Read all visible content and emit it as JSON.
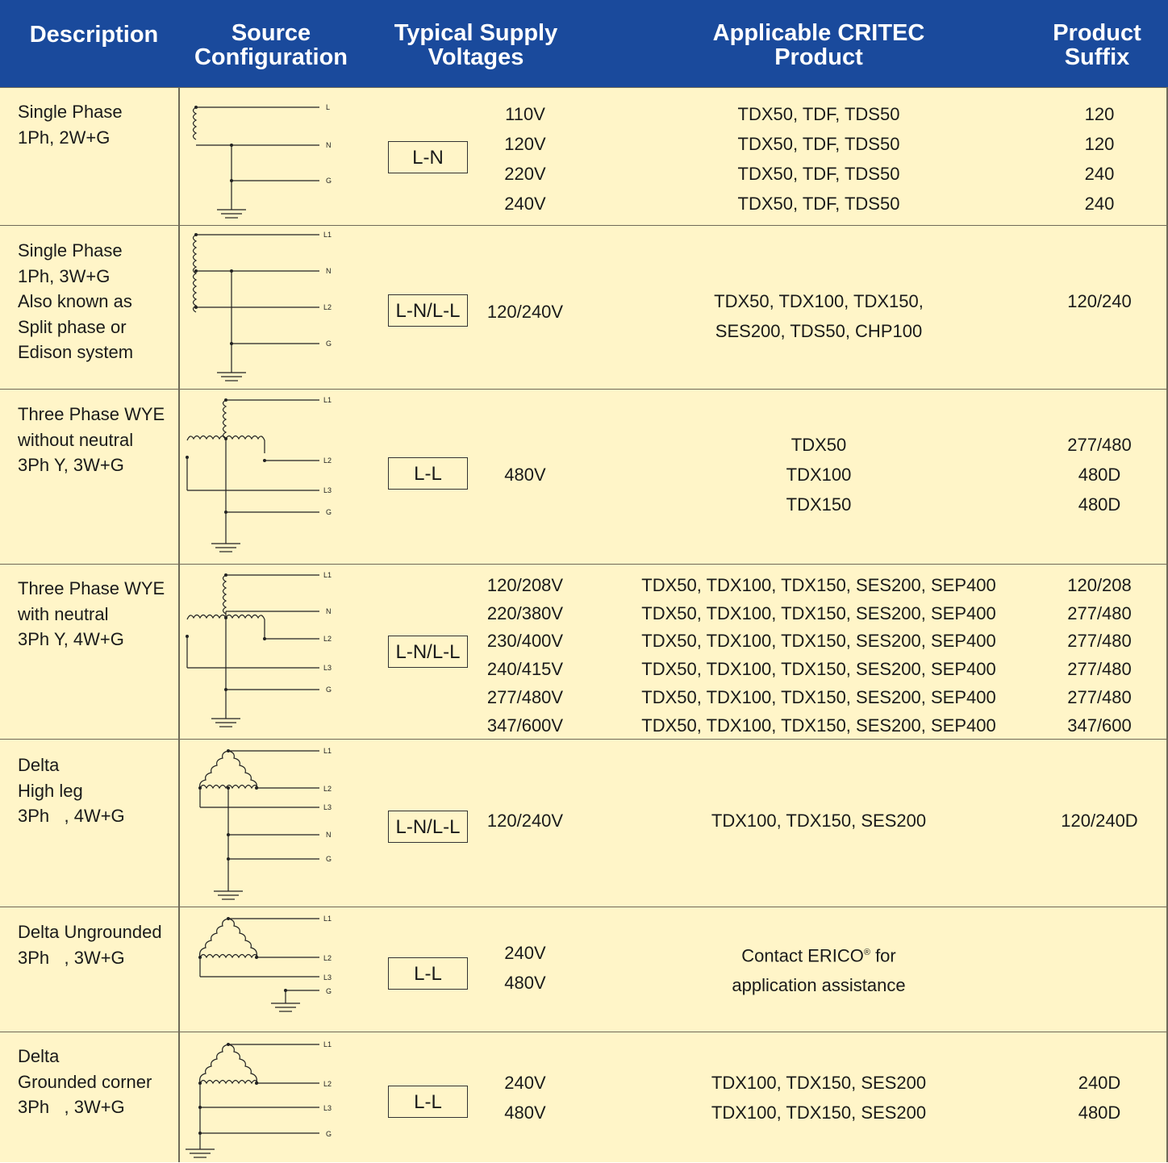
{
  "header": {
    "description": "Description",
    "source_line1": "Source",
    "source_line2": "Configuration",
    "voltages_line1": "Typical Supply",
    "voltages_line2": "Voltages",
    "product_line1": "Applicable CRITEC",
    "product_line2": "Product",
    "suffix_line1": "Product",
    "suffix_line2": "Suffix"
  },
  "rows": [
    {
      "description": [
        "Single Phase",
        "1Ph, 2W+G"
      ],
      "terminals": [
        "L",
        "N",
        "G"
      ],
      "connection": "L-N",
      "voltages": [
        "110V",
        "120V",
        "220V",
        "240V"
      ],
      "products": [
        "TDX50, TDF, TDS50",
        "TDX50, TDF, TDS50",
        "TDX50, TDF, TDS50",
        "TDX50, TDF, TDS50"
      ],
      "suffixes": [
        "120",
        "120",
        "240",
        "240"
      ]
    },
    {
      "description": [
        "Single Phase",
        "1Ph, 3W+G",
        "Also known as",
        "Split phase or",
        "Edison system"
      ],
      "terminals": [
        "L1",
        "N",
        "L2",
        "G"
      ],
      "connection": "L-N/L-L",
      "voltages": [
        "120/240V"
      ],
      "products": [
        "TDX50, TDX100, TDX150,",
        "SES200, TDS50, CHP100"
      ],
      "suffixes": [
        "120/240"
      ]
    },
    {
      "description": [
        "Three Phase WYE",
        "without neutral",
        "3Ph Y, 3W+G"
      ],
      "terminals": [
        "L1",
        "L2",
        "L3",
        "G"
      ],
      "connection": "L-L",
      "voltages": [
        "480V"
      ],
      "products": [
        "TDX50",
        "TDX100",
        "TDX150"
      ],
      "suffixes": [
        "277/480",
        "480D",
        "480D"
      ]
    },
    {
      "description": [
        "Three Phase WYE",
        "with neutral",
        "3Ph Y, 4W+G"
      ],
      "terminals": [
        "L1",
        "N",
        "L2",
        "L3",
        "G"
      ],
      "connection": "L-N/L-L",
      "voltages": [
        "120/208V",
        "220/380V",
        "230/400V",
        "240/415V",
        "277/480V",
        "347/600V"
      ],
      "products": [
        "TDX50, TDX100, TDX150, SES200, SEP400",
        "TDX50, TDX100, TDX150, SES200, SEP400",
        "TDX50, TDX100, TDX150, SES200, SEP400",
        "TDX50, TDX100, TDX150, SES200, SEP400",
        "TDX50, TDX100, TDX150, SES200, SEP400",
        "TDX50, TDX100, TDX150, SES200, SEP400"
      ],
      "suffixes": [
        "120/208",
        "277/480",
        "277/480",
        "277/480",
        "277/480",
        "347/600"
      ]
    },
    {
      "description": [
        "Delta",
        "High leg",
        "3Ph   , 4W+G"
      ],
      "terminals": [
        "L1",
        "L2",
        "L3",
        "N",
        "G"
      ],
      "connection": "L-N/L-L",
      "voltages": [
        "120/240V"
      ],
      "products": [
        "TDX100, TDX150, SES200"
      ],
      "suffixes": [
        "120/240D"
      ]
    },
    {
      "description": [
        "Delta Ungrounded",
        "3Ph   , 3W+G"
      ],
      "terminals": [
        "L1",
        "L2",
        "L3",
        "G"
      ],
      "connection": "L-L",
      "voltages": [
        "240V",
        "480V"
      ],
      "products_note_line1": "Contact ERICO",
      "products_note_reg": "®",
      "products_note_line1_end": " for",
      "products_note_line2": "application assistance",
      "suffixes": []
    },
    {
      "description": [
        "Delta",
        "Grounded corner",
        "3Ph   , 3W+G"
      ],
      "terminals": [
        "L1",
        "L2",
        "L3",
        "G"
      ],
      "connection": "L-L",
      "voltages": [
        "240V",
        "480V"
      ],
      "products": [
        "TDX100, TDX150, SES200",
        "TDX100, TDX150, SES200"
      ],
      "suffixes": [
        "240D",
        "480D"
      ]
    }
  ],
  "colors": {
    "header_bg": "#1a4a9c",
    "body_bg": "#fff5c8",
    "rule": "#6f6a58"
  }
}
